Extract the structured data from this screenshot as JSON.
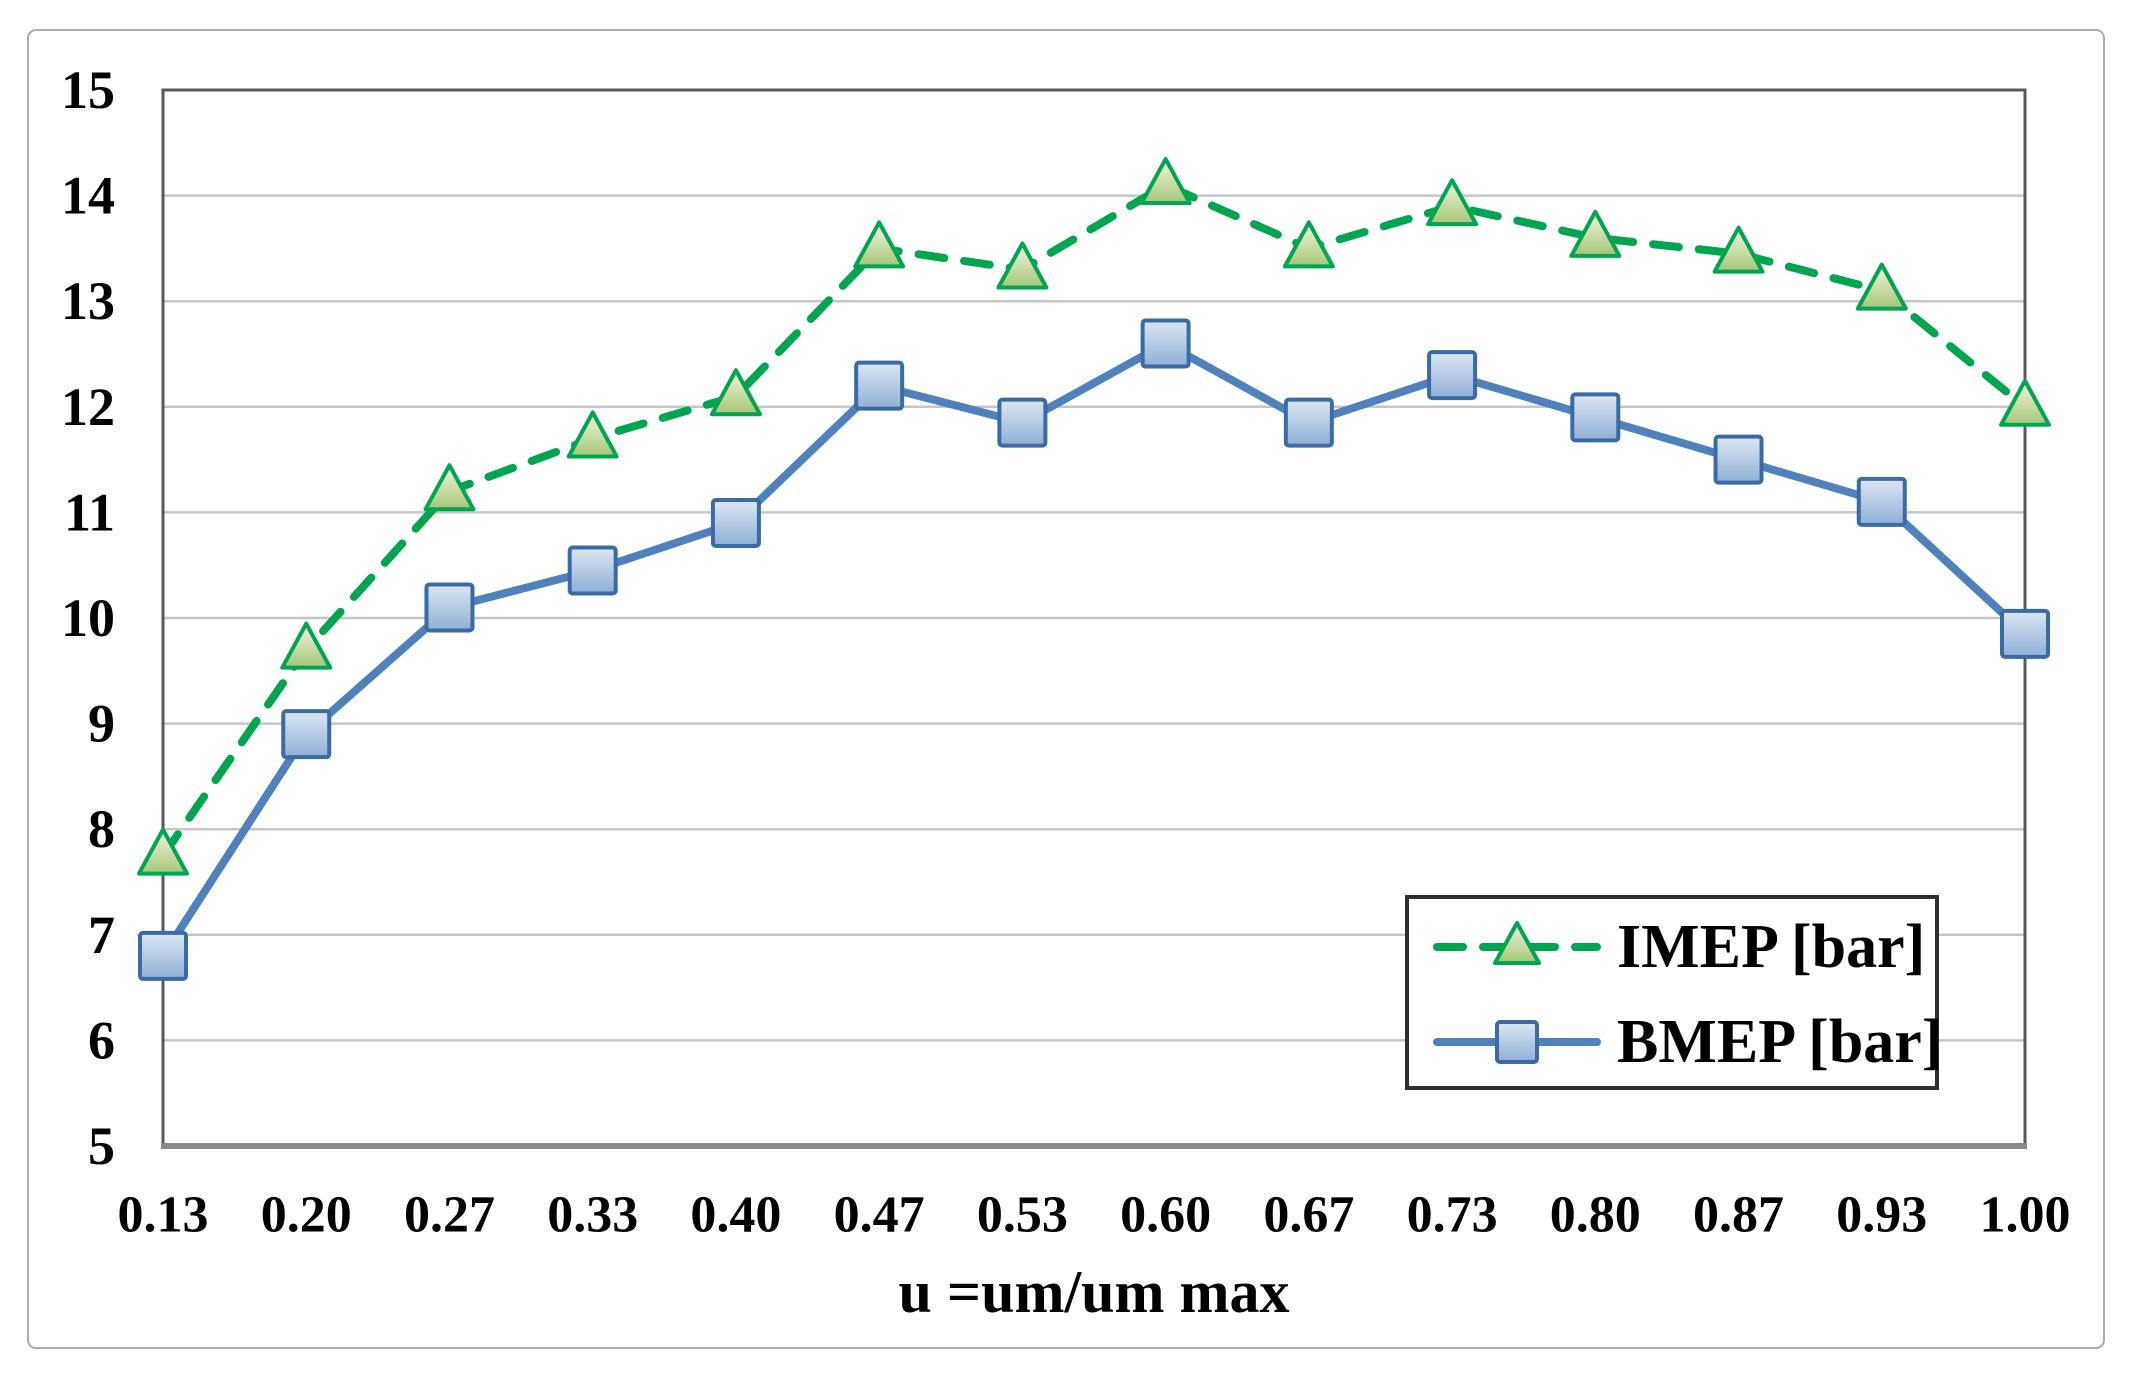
{
  "figure": {
    "background": "#FFFFFF",
    "border_color": "#ACACAC"
  },
  "chart_data": {
    "type": "line",
    "title": "",
    "xlabel": "u =um/um max",
    "ylabel": "",
    "categories": [
      "0.13",
      "0.20",
      "0.27",
      "0.33",
      "0.40",
      "0.47",
      "0.53",
      "0.60",
      "0.67",
      "0.73",
      "0.80",
      "0.87",
      "0.93",
      "1.00"
    ],
    "ylim": [
      5,
      15
    ],
    "ytick_step": 1,
    "ytick_labels": [
      "5",
      "6",
      "7",
      "8",
      "9",
      "10",
      "11",
      "12",
      "13",
      "14",
      "15"
    ],
    "grid": "horizontal",
    "gridline_color": "#C6C6C6",
    "axis_color": "#595959",
    "baseline_color": "#8C8C8C",
    "text_color": "#000000",
    "legend_position": "inside-bottom-right",
    "legend_border_color": "#2F2F2F",
    "series": [
      {
        "name": "IMEP [bar]",
        "marker": "triangle",
        "line_style": "dashed",
        "color": "#00A550",
        "marker_border": "#00A550",
        "marker_fill_top": "#F2F6E0",
        "marker_fill_bottom": "#A6C677",
        "values": [
          7.75,
          9.7,
          11.2,
          11.7,
          12.1,
          13.5,
          13.3,
          14.1,
          13.5,
          13.9,
          13.6,
          13.45,
          13.1,
          12.0
        ]
      },
      {
        "name": "BMEP [bar]",
        "marker": "square",
        "line_style": "solid",
        "color": "#4F81BD",
        "marker_border": "#3A6BA5",
        "marker_fill_top": "#DCE7F3",
        "marker_fill_bottom": "#8FAFD6",
        "values": [
          6.8,
          8.9,
          10.1,
          10.45,
          10.9,
          12.2,
          11.85,
          12.6,
          11.85,
          12.3,
          11.9,
          11.5,
          11.1,
          9.85
        ]
      }
    ]
  }
}
